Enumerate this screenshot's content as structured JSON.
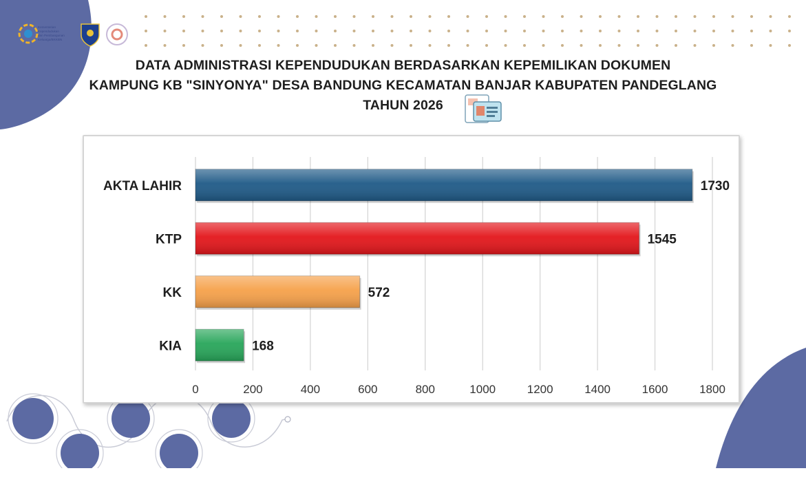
{
  "header": {
    "logo_text": [
      "Kementerian",
      "Kependudukan",
      "dan Pembangunan",
      "Keluarga/BKKBN"
    ]
  },
  "title_lines": [
    "DATA ADMINISTRASI KEPENDUDUKAN BERDASARKAN KEPEMILIKAN DOKUMEN",
    "KAMPUNG KB \"SINYONYA\" DESA BANDUNG KECAMATAN BANJAR KABUPATEN PANDEGLANG",
    "TAHUN 2026"
  ],
  "chart_data": {
    "type": "bar",
    "orientation": "horizontal",
    "categories": [
      "AKTA LAHIR",
      "KTP",
      "KK",
      "KIA"
    ],
    "values": [
      1730,
      1545,
      572,
      168
    ],
    "data_labels": [
      "1730",
      "1545",
      "572",
      "168"
    ],
    "xlim": [
      0,
      1800
    ],
    "x_ticks": [
      "0",
      "200",
      "400",
      "600",
      "800",
      "1000",
      "1200",
      "1400",
      "1600",
      "1800"
    ],
    "grid": "vertical",
    "colors": [
      "#1f5a87",
      "#e3161b",
      "#f6a14a",
      "#28a65a"
    ],
    "title": "DATA ADMINISTRASI KEPENDUDUKAN BERDASARKAN KEPEMILIKAN DOKUMEN KAMPUNG KB \"SINYONYA\" DESA BANDUNG KECAMATAN BANJAR KABUPATEN PANDEGLANG TAHUN 2026",
    "xlabel": "",
    "ylabel": ""
  },
  "theme": {
    "accent": "#5c6aa3",
    "dot_color": "#c9b18a",
    "grid_color": "#d3d3d3"
  },
  "icons": [
    "kemendukbangga-logo-icon",
    "pandeglang-seal-icon",
    "bkkbn-logo-icon",
    "document-cards-icon"
  ]
}
